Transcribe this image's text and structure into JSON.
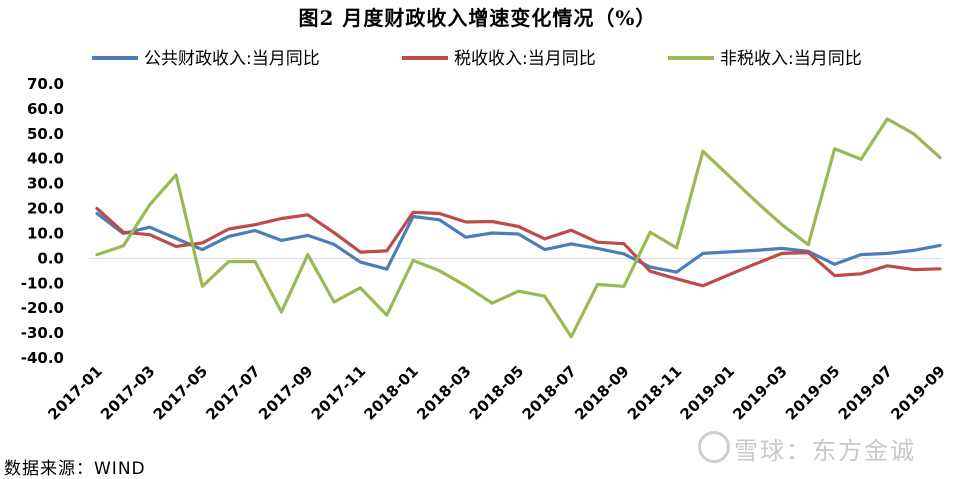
{
  "title": "图2   月度财政收入增速变化情况（%）",
  "source": "数据来源：WIND",
  "watermark": "雪球：东方金诚",
  "chart_data": {
    "type": "line",
    "x": [
      "2017-01",
      "2017-02",
      "2017-03",
      "2017-04",
      "2017-05",
      "2017-06",
      "2017-07",
      "2017-08",
      "2017-09",
      "2017-10",
      "2017-11",
      "2017-12",
      "2018-01",
      "2018-02",
      "2018-03",
      "2018-04",
      "2018-05",
      "2018-06",
      "2018-07",
      "2018-08",
      "2018-09",
      "2018-10",
      "2018-11",
      "2018-12",
      "2019-01",
      "2019-02",
      "2019-03",
      "2019-04",
      "2019-05",
      "2019-06",
      "2019-07",
      "2019-08",
      "2019-09"
    ],
    "x_tick_labels": [
      "2017-01",
      "2017-03",
      "2017-05",
      "2017-07",
      "2017-09",
      "2017-11",
      "2018-01",
      "2018-03",
      "2018-05",
      "2018-07",
      "2018-09",
      "2018-11",
      "2019-01",
      "2019-03",
      "2019-05",
      "2019-07",
      "2019-09"
    ],
    "y_tick_labels": [
      "70.0",
      "60.0",
      "50.0",
      "40.0",
      "30.0",
      "20.0",
      "10.0",
      "0.0",
      "-10.0",
      "-20.0",
      "-30.0",
      "-40.0"
    ],
    "ylim": [
      -40,
      70
    ],
    "legend_position": "top",
    "series": [
      {
        "name": "公共财政收入:当月同比",
        "color": "#4a7ebb",
        "values": [
          18.0,
          10.0,
          12.5,
          8.0,
          3.5,
          8.8,
          11.2,
          7.2,
          9.2,
          5.6,
          -1.5,
          -4.3,
          16.8,
          15.5,
          8.5,
          10.2,
          9.8,
          3.5,
          5.8,
          4.0,
          1.8,
          -3.5,
          -5.5,
          2.0,
          2.6,
          3.2,
          4.0,
          2.8,
          -2.4,
          1.5,
          2.0,
          3.2,
          5.2
        ]
      },
      {
        "name": "税收收入:当月同比",
        "color": "#be4b48",
        "values": [
          20.0,
          10.5,
          9.5,
          4.8,
          6.2,
          11.8,
          13.5,
          16.0,
          17.5,
          10.3,
          2.5,
          3.0,
          18.5,
          18.0,
          14.6,
          14.8,
          12.8,
          7.8,
          11.3,
          6.5,
          5.9,
          -5.2,
          -8.2,
          -11.0,
          -6.5,
          -2.2,
          2.0,
          2.3,
          -6.9,
          -6.2,
          -3.0,
          -4.5,
          -4.2
        ]
      },
      {
        "name": "非税收入:当月同比",
        "color": "#98b954",
        "values": [
          1.5,
          5.0,
          21.5,
          33.5,
          -11.2,
          -1.3,
          -1.3,
          -21.5,
          1.5,
          -17.5,
          -11.8,
          -22.8,
          -0.8,
          -5.0,
          -11.0,
          -18.0,
          -13.2,
          -15.2,
          -31.5,
          -10.5,
          -11.2,
          10.5,
          4.2,
          43.0,
          33.0,
          23.0,
          13.5,
          5.5,
          44.0,
          39.8,
          56.0,
          50.0,
          40.5
        ]
      }
    ]
  }
}
